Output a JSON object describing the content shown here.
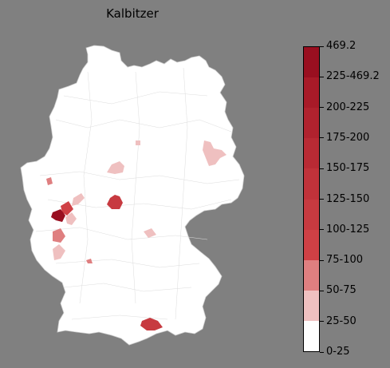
{
  "title": "Kalbitzer",
  "legend": {
    "top_label": "469.2",
    "classes": [
      {
        "label": "0-25",
        "color": "#ffffff",
        "weight": 1
      },
      {
        "label": "25-50",
        "color": "#efc0c0",
        "weight": 1
      },
      {
        "label": "50-75",
        "color": "#df7f80",
        "weight": 1
      },
      {
        "label": "75-100",
        "color": "#cf4045",
        "weight": 1
      },
      {
        "label": "100-125",
        "color": "#c73a40",
        "weight": 1
      },
      {
        "label": "125-150",
        "color": "#c0323a",
        "weight": 1
      },
      {
        "label": "150-175",
        "color": "#b82a34",
        "weight": 1
      },
      {
        "label": "175-200",
        "color": "#b0222e",
        "weight": 1
      },
      {
        "label": "200-225",
        "color": "#a81a28",
        "weight": 1
      },
      {
        "label": "225-469.2",
        "color": "#990f20",
        "weight": 1
      }
    ]
  },
  "map": {
    "country": "Germany",
    "base_color": "#ffffff",
    "border_color": "#d0d0d0",
    "regions": [
      {
        "name": "region-east-brandenburg",
        "class": "25-50"
      },
      {
        "name": "region-central-thuringia",
        "class": "25-50"
      },
      {
        "name": "region-small-sachsen-anhalt",
        "class": "25-50"
      },
      {
        "name": "region-hessen",
        "class": "100-125"
      },
      {
        "name": "region-west-hessen-north",
        "class": "25-50"
      },
      {
        "name": "region-west-hessen-mid",
        "class": "75-100"
      },
      {
        "name": "region-west-hotspot",
        "class": "225-469.2"
      },
      {
        "name": "region-west-rhineland",
        "class": "25-50"
      },
      {
        "name": "region-west-pfalz",
        "class": "50-75"
      },
      {
        "name": "region-west-south",
        "class": "25-50"
      },
      {
        "name": "region-nrw-west",
        "class": "50-75"
      },
      {
        "name": "region-bavaria-north",
        "class": "25-50"
      },
      {
        "name": "region-bavaria-south",
        "class": "100-125"
      },
      {
        "name": "region-bw-small",
        "class": "50-75"
      }
    ]
  }
}
